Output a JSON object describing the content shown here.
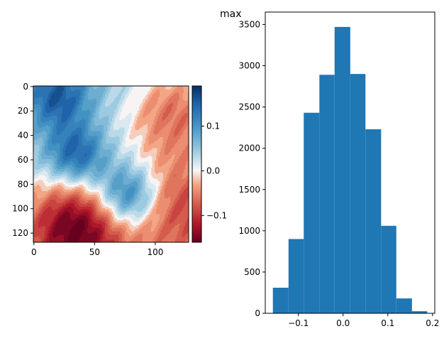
{
  "title": "max",
  "colors": {
    "bar": "#1f77b4",
    "axis": "#000000",
    "background": "#ffffff",
    "cmap_low": "#67001f",
    "cmap_mid": "#f7f7f7",
    "cmap_high": "#053061"
  },
  "chart_data": [
    {
      "type": "heatmap",
      "title": "",
      "colormap": "RdBu",
      "grid_size": [
        128,
        128
      ],
      "x_ticks": [
        "0",
        "50",
        "100"
      ],
      "y_ticks": [
        "0",
        "20",
        "40",
        "60",
        "80",
        "100",
        "120"
      ],
      "x_tick_values": [
        0,
        50,
        100
      ],
      "y_tick_values": [
        0,
        20,
        40,
        60,
        80,
        100,
        120
      ],
      "xlim": [
        -0.5,
        127.5
      ],
      "ylim": [
        127.5,
        -0.5
      ],
      "features": [
        {
          "kind": "low",
          "x": 35,
          "y": 115,
          "value": -0.16
        },
        {
          "kind": "low",
          "x": 115,
          "y": 18,
          "value": -0.1
        },
        {
          "kind": "low",
          "x": 120,
          "y": 95,
          "value": -0.08
        },
        {
          "kind": "high",
          "x": 77,
          "y": 90,
          "value": 0.15
        },
        {
          "kind": "high",
          "x": 35,
          "y": 57,
          "value": 0.13
        },
        {
          "kind": "high",
          "x": 20,
          "y": 10,
          "value": 0.1
        }
      ],
      "colorbar": {
        "ticks": [
          "0.1",
          "0.0",
          "−0.1"
        ],
        "tick_values": [
          0.1,
          0.0,
          -0.1
        ],
        "range": [
          -0.16,
          0.19
        ]
      }
    },
    {
      "type": "bar",
      "subtype": "histogram",
      "title": "max",
      "bin_edges": [
        -0.157,
        -0.122,
        -0.088,
        -0.053,
        -0.019,
        0.016,
        0.05,
        0.085,
        0.119,
        0.154,
        0.188
      ],
      "values": [
        310,
        900,
        2430,
        2890,
        3470,
        2900,
        2230,
        1060,
        180,
        25
      ],
      "xlim": [
        -0.174,
        0.205
      ],
      "ylim": [
        0,
        3650
      ],
      "x_ticks": [
        "−0.1",
        "0.0",
        "0.1",
        "0.2"
      ],
      "x_tick_values": [
        -0.1,
        0.0,
        0.1,
        0.2
      ],
      "y_ticks": [
        "0",
        "500",
        "1000",
        "1500",
        "2000",
        "2500",
        "3000",
        "3500"
      ],
      "y_tick_values": [
        0,
        500,
        1000,
        1500,
        2000,
        2500,
        3000,
        3500
      ],
      "xlabel": "",
      "ylabel": ""
    }
  ]
}
